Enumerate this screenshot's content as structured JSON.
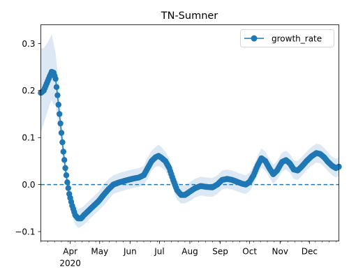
{
  "chart_data": {
    "type": "line",
    "title": "TN-Sumner",
    "xlabel": "",
    "ylabel": "",
    "x_axis": {
      "type": "date",
      "range": [
        "2020-03-02",
        "2020-12-31"
      ],
      "month_ticks": [
        {
          "date": "2020-04-01",
          "label": "Apr"
        },
        {
          "date": "2020-05-01",
          "label": "May"
        },
        {
          "date": "2020-06-01",
          "label": "Jun"
        },
        {
          "date": "2020-07-01",
          "label": "Jul"
        },
        {
          "date": "2020-08-01",
          "label": "Aug"
        },
        {
          "date": "2020-09-01",
          "label": "Sep"
        },
        {
          "date": "2020-10-01",
          "label": "Oct"
        },
        {
          "date": "2020-11-01",
          "label": "Nov"
        },
        {
          "date": "2020-12-01",
          "label": "Dec"
        }
      ],
      "year_label": {
        "date": "2020-04-01",
        "label": "2020"
      }
    },
    "y_axis": {
      "range": [
        -0.12,
        0.34
      ],
      "ticks": [
        {
          "value": -0.1,
          "label": "−0.1"
        },
        {
          "value": 0.0,
          "label": "0.0"
        },
        {
          "value": 0.1,
          "label": "0.1"
        },
        {
          "value": 0.2,
          "label": "0.2"
        },
        {
          "value": 0.3,
          "label": "0.3"
        }
      ]
    },
    "reference_line": {
      "y": 0.0,
      "style": "dashed"
    },
    "grid": false,
    "legend": {
      "placement": "top-right",
      "entries": [
        "growth_rate"
      ]
    },
    "series": [
      {
        "name": "growth_rate",
        "color": "#1f77b4",
        "band_color": "#dce9f5",
        "marker": "circle",
        "points": [
          [
            "2020-03-02",
            0.195,
            0.11,
            0.29
          ],
          [
            "2020-03-05",
            0.2,
            0.13,
            0.29
          ],
          [
            "2020-03-08",
            0.215,
            0.15,
            0.3
          ],
          [
            "2020-03-11",
            0.23,
            0.17,
            0.31
          ],
          [
            "2020-03-13",
            0.24,
            0.18,
            0.32
          ],
          [
            "2020-03-15",
            0.238,
            0.17,
            0.3
          ],
          [
            "2020-03-17",
            0.225,
            0.17,
            0.28
          ],
          [
            "2020-03-19",
            0.19,
            0.14,
            0.24
          ],
          [
            "2020-03-21",
            0.15,
            0.11,
            0.19
          ],
          [
            "2020-03-23",
            0.11,
            0.08,
            0.14
          ],
          [
            "2020-03-25",
            0.07,
            0.045,
            0.095
          ],
          [
            "2020-03-27",
            0.035,
            0.015,
            0.055
          ],
          [
            "2020-03-29",
            0.005,
            -0.015,
            0.025
          ],
          [
            "2020-03-31",
            -0.02,
            -0.04,
            0.0
          ],
          [
            "2020-04-03",
            -0.045,
            -0.065,
            -0.025
          ],
          [
            "2020-04-06",
            -0.065,
            -0.085,
            -0.045
          ],
          [
            "2020-04-09",
            -0.072,
            -0.092,
            -0.052
          ],
          [
            "2020-04-12",
            -0.072,
            -0.09,
            -0.05
          ],
          [
            "2020-04-15",
            -0.065,
            -0.085,
            -0.045
          ],
          [
            "2020-04-20",
            -0.055,
            -0.075,
            -0.035
          ],
          [
            "2020-04-25",
            -0.045,
            -0.065,
            -0.025
          ],
          [
            "2020-04-30",
            -0.035,
            -0.055,
            -0.015
          ],
          [
            "2020-05-05",
            -0.022,
            -0.045,
            0.0
          ],
          [
            "2020-05-10",
            -0.01,
            -0.032,
            0.012
          ],
          [
            "2020-05-15",
            0.0,
            -0.02,
            0.02
          ],
          [
            "2020-05-20",
            0.004,
            -0.016,
            0.024
          ],
          [
            "2020-05-25",
            0.007,
            -0.013,
            0.027
          ],
          [
            "2020-05-30",
            0.01,
            -0.01,
            0.03
          ],
          [
            "2020-06-05",
            0.013,
            -0.007,
            0.033
          ],
          [
            "2020-06-10",
            0.015,
            -0.005,
            0.035
          ],
          [
            "2020-06-15",
            0.02,
            0.0,
            0.04
          ],
          [
            "2020-06-19",
            0.035,
            0.012,
            0.058
          ],
          [
            "2020-06-23",
            0.05,
            0.03,
            0.072
          ],
          [
            "2020-06-27",
            0.058,
            0.038,
            0.08
          ],
          [
            "2020-06-30",
            0.061,
            0.04,
            0.085
          ],
          [
            "2020-07-03",
            0.057,
            0.036,
            0.08
          ],
          [
            "2020-07-07",
            0.05,
            0.03,
            0.07
          ],
          [
            "2020-07-11",
            0.035,
            0.012,
            0.055
          ],
          [
            "2020-07-15",
            0.01,
            -0.01,
            0.03
          ],
          [
            "2020-07-19",
            -0.012,
            -0.032,
            0.01
          ],
          [
            "2020-07-23",
            -0.022,
            -0.04,
            -0.002
          ],
          [
            "2020-07-27",
            -0.022,
            -0.04,
            -0.002
          ],
          [
            "2020-08-01",
            -0.015,
            -0.035,
            0.005
          ],
          [
            "2020-08-06",
            -0.008,
            -0.028,
            0.012
          ],
          [
            "2020-08-12",
            -0.003,
            -0.023,
            0.017
          ],
          [
            "2020-08-18",
            -0.005,
            -0.025,
            0.015
          ],
          [
            "2020-08-24",
            -0.006,
            -0.026,
            0.014
          ],
          [
            "2020-08-29",
            0.0,
            -0.02,
            0.02
          ],
          [
            "2020-09-03",
            0.01,
            -0.01,
            0.03
          ],
          [
            "2020-09-08",
            0.012,
            -0.008,
            0.032
          ],
          [
            "2020-09-13",
            0.01,
            -0.01,
            0.03
          ],
          [
            "2020-09-18",
            0.006,
            -0.014,
            0.026
          ],
          [
            "2020-09-23",
            0.002,
            -0.018,
            0.022
          ],
          [
            "2020-09-27",
            0.0,
            -0.02,
            0.02
          ],
          [
            "2020-10-01",
            0.006,
            -0.014,
            0.026
          ],
          [
            "2020-10-05",
            0.02,
            0.0,
            0.04
          ],
          [
            "2020-10-09",
            0.04,
            0.02,
            0.06
          ],
          [
            "2020-10-13",
            0.056,
            0.035,
            0.077
          ],
          [
            "2020-10-17",
            0.05,
            0.03,
            0.07
          ],
          [
            "2020-10-21",
            0.035,
            0.015,
            0.055
          ],
          [
            "2020-10-25",
            0.022,
            0.002,
            0.042
          ],
          [
            "2020-10-29",
            0.03,
            0.01,
            0.05
          ],
          [
            "2020-11-03",
            0.048,
            0.028,
            0.068
          ],
          [
            "2020-11-07",
            0.052,
            0.032,
            0.072
          ],
          [
            "2020-11-11",
            0.045,
            0.025,
            0.065
          ],
          [
            "2020-11-15",
            0.032,
            0.012,
            0.052
          ],
          [
            "2020-11-19",
            0.03,
            0.01,
            0.05
          ],
          [
            "2020-11-23",
            0.038,
            0.018,
            0.058
          ],
          [
            "2020-11-28",
            0.05,
            0.03,
            0.07
          ],
          [
            "2020-12-03",
            0.06,
            0.04,
            0.08
          ],
          [
            "2020-12-08",
            0.067,
            0.047,
            0.087
          ],
          [
            "2020-12-12",
            0.065,
            0.045,
            0.085
          ],
          [
            "2020-12-16",
            0.058,
            0.038,
            0.078
          ],
          [
            "2020-12-20",
            0.048,
            0.028,
            0.068
          ],
          [
            "2020-12-24",
            0.04,
            0.02,
            0.06
          ],
          [
            "2020-12-28",
            0.035,
            0.015,
            0.055
          ],
          [
            "2020-12-31",
            0.038,
            0.018,
            0.058
          ]
        ]
      }
    ]
  }
}
